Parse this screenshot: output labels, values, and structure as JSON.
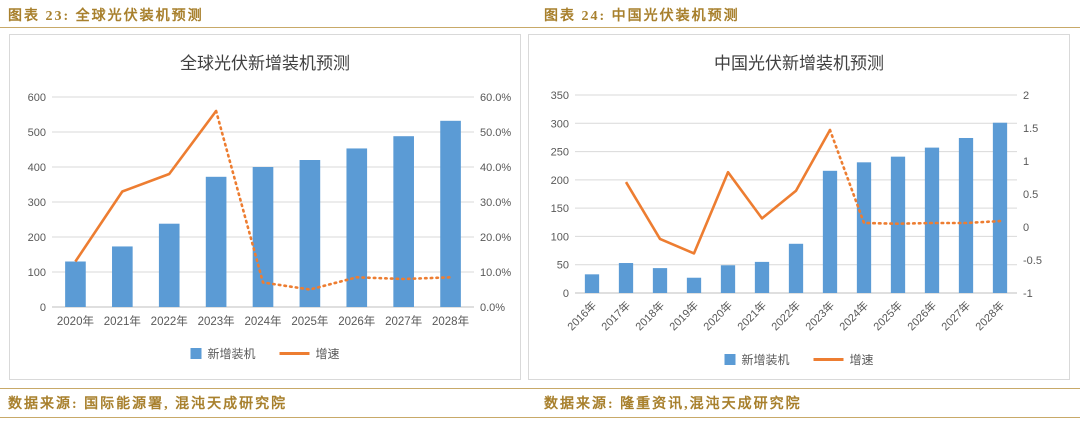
{
  "captions": [
    {
      "label": "图表 23:  全球光伏装机预测"
    },
    {
      "label": "图表 24:  中国光伏装机预测"
    }
  ],
  "footers": [
    {
      "label": "数据来源:  国际能源署,  混沌天成研究院"
    },
    {
      "label": "数据来源:  隆重资讯,混沌天成研究院"
    }
  ],
  "colors": {
    "bar": "#5B9BD5",
    "line": "#ED7D31",
    "caption_text": "#A8802D",
    "divider": "#C8A968",
    "grid": "#D9D9D9",
    "axis_line": "#BFBFBF",
    "axis_text": "#595959",
    "title_text": "#404040"
  },
  "chart_data": [
    {
      "type": "bar",
      "subtype": "bar+line-dual-axis",
      "title": "全球光伏新增装机预测",
      "categories": [
        "2020年",
        "2021年",
        "2022年",
        "2023年",
        "2024年",
        "2025年",
        "2026年",
        "2027年",
        "2028年"
      ],
      "bar_series": {
        "name": "新增装机",
        "color": "#5B9BD5",
        "axis": "left",
        "values": [
          130,
          173,
          238,
          372,
          400,
          420,
          453,
          488,
          532
        ]
      },
      "line_series": {
        "name": "增速",
        "color": "#ED7D31",
        "axis": "right",
        "values": [
          0.13,
          0.33,
          0.38,
          0.56,
          0.07,
          0.05,
          0.085,
          0.08,
          0.085
        ],
        "solid_until_index": 3,
        "dotted_note": "dotted (forecast) after 2023年"
      },
      "left_axis": {
        "min": 0,
        "max": 600,
        "step": 100,
        "tick_labels": [
          "0",
          "100",
          "200",
          "300",
          "400",
          "500",
          "600"
        ]
      },
      "right_axis": {
        "min": 0,
        "max": 0.6,
        "step": 0.1,
        "format": "percent",
        "tick_labels": [
          "0.0%",
          "10.0%",
          "20.0%",
          "30.0%",
          "40.0%",
          "50.0%",
          "60.0%"
        ]
      },
      "x_label_rotate": 0,
      "grid": true,
      "legend_position": "bottom"
    },
    {
      "type": "bar",
      "subtype": "bar+line-dual-axis",
      "title": "中国光伏新增装机预测",
      "categories": [
        "2016年",
        "2017年",
        "2018年",
        "2019年",
        "2020年",
        "2021年",
        "2022年",
        "2023年",
        "2024年",
        "2025年",
        "2026年",
        "2027年",
        "2028年"
      ],
      "bar_series": {
        "name": "新增装机",
        "color": "#5B9BD5",
        "axis": "left",
        "values": [
          33,
          53,
          44,
          27,
          49,
          55,
          87,
          216,
          231,
          241,
          257,
          274,
          301
        ]
      },
      "line_series": {
        "name": "增速",
        "color": "#ED7D31",
        "axis": "right",
        "values": [
          null,
          0.68,
          -0.18,
          -0.4,
          0.83,
          0.13,
          0.55,
          1.47,
          0.06,
          0.05,
          0.06,
          0.06,
          0.09
        ],
        "solid_until_index": 7,
        "dotted_note": "dotted (forecast) after 2023年"
      },
      "left_axis": {
        "min": 0,
        "max": 350,
        "step": 50,
        "tick_labels": [
          "0",
          "50",
          "100",
          "150",
          "200",
          "250",
          "300",
          "350"
        ]
      },
      "right_axis": {
        "min": -1,
        "max": 2,
        "step": 0.5,
        "format": "number",
        "tick_labels": [
          "-1",
          "-0.5",
          "0",
          "0.5",
          "1",
          "1.5",
          "2"
        ]
      },
      "x_label_rotate": 45,
      "grid": true,
      "legend_position": "bottom"
    }
  ]
}
